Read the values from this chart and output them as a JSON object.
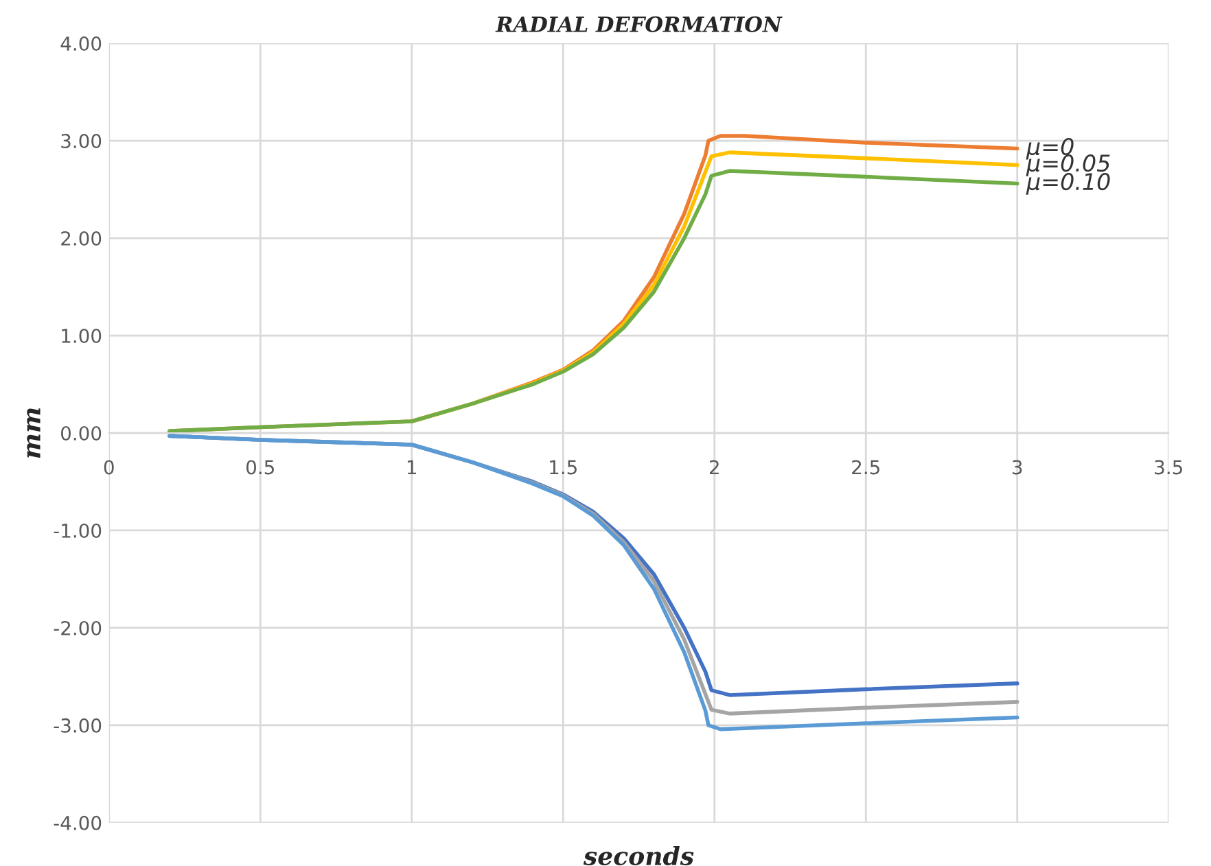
{
  "chart_data": {
    "type": "line",
    "title": "RADIAL DEFORMATION",
    "xlabel": "seconds",
    "ylabel": "mm",
    "xlim": [
      0,
      3.5
    ],
    "xticks": [
      0,
      0.5,
      1,
      1.5,
      2,
      2.5,
      3,
      3.5
    ],
    "ylim": [
      -4,
      4
    ],
    "yticks": [
      {
        "value": -4,
        "label": "-4.00"
      },
      {
        "value": -3,
        "label": "-3.00"
      },
      {
        "value": -2,
        "label": "-2.00"
      },
      {
        "value": -1,
        "label": "-1.00"
      },
      {
        "value": 0,
        "label": "0.00"
      },
      {
        "value": 1,
        "label": "1.00"
      },
      {
        "value": 2,
        "label": "2.00"
      },
      {
        "value": 3,
        "label": "3.00"
      },
      {
        "value": 4,
        "label": "4.00"
      }
    ],
    "grid": true,
    "legend": false,
    "marker": "none",
    "line_style": "solid",
    "series": [
      {
        "name": "μ=0",
        "color": "#ed7d31",
        "x": [
          0.2,
          0.5,
          1.0,
          1.2,
          1.4,
          1.5,
          1.6,
          1.7,
          1.8,
          1.9,
          1.97,
          1.98,
          2.02,
          2.1,
          2.5,
          3.0
        ],
        "values": [
          0.02,
          0.06,
          0.12,
          0.3,
          0.52,
          0.65,
          0.85,
          1.15,
          1.6,
          2.25,
          2.85,
          3.0,
          3.05,
          3.05,
          2.98,
          2.92
        ]
      },
      {
        "name": "μ=0.05",
        "color": "#ffc000",
        "x": [
          1.0,
          1.2,
          1.4,
          1.5,
          1.6,
          1.7,
          1.8,
          1.9,
          1.97,
          1.99,
          2.05,
          2.5,
          3.0
        ],
        "values": [
          0.12,
          0.3,
          0.51,
          0.64,
          0.83,
          1.12,
          1.52,
          2.12,
          2.68,
          2.84,
          2.88,
          2.82,
          2.75
        ]
      },
      {
        "name": "μ=0.10",
        "color": "#70ad47",
        "x": [
          0.2,
          0.5,
          1.0,
          1.2,
          1.4,
          1.5,
          1.6,
          1.7,
          1.8,
          1.9,
          1.97,
          1.99,
          2.05,
          2.5,
          3.0
        ],
        "values": [
          0.02,
          0.06,
          0.12,
          0.3,
          0.5,
          0.63,
          0.81,
          1.08,
          1.45,
          2.0,
          2.45,
          2.64,
          2.69,
          2.63,
          2.56
        ]
      },
      {
        "color": "#4472c4",
        "x": [
          0.2,
          0.5,
          1.0,
          1.2,
          1.4,
          1.5,
          1.6,
          1.7,
          1.8,
          1.9,
          1.97,
          1.99,
          2.05,
          2.5,
          3.0
        ],
        "values": [
          -0.03,
          -0.07,
          -0.12,
          -0.3,
          -0.5,
          -0.63,
          -0.81,
          -1.08,
          -1.45,
          -2.0,
          -2.45,
          -2.64,
          -2.69,
          -2.63,
          -2.57
        ]
      },
      {
        "color": "#a5a5a5",
        "x": [
          0.2,
          0.5,
          1.0,
          1.2,
          1.4,
          1.5,
          1.6,
          1.7,
          1.8,
          1.9,
          1.97,
          1.99,
          2.05,
          2.5,
          3.0
        ],
        "values": [
          -0.03,
          -0.07,
          -0.12,
          -0.3,
          -0.51,
          -0.64,
          -0.83,
          -1.12,
          -1.52,
          -2.12,
          -2.68,
          -2.84,
          -2.88,
          -2.82,
          -2.76
        ]
      },
      {
        "color": "#5b9bd5",
        "x": [
          0.2,
          0.5,
          1.0,
          1.2,
          1.4,
          1.5,
          1.6,
          1.7,
          1.8,
          1.9,
          1.97,
          1.98,
          2.02,
          2.1,
          2.5,
          3.0
        ],
        "values": [
          -0.03,
          -0.07,
          -0.12,
          -0.3,
          -0.52,
          -0.65,
          -0.85,
          -1.15,
          -1.6,
          -2.25,
          -2.85,
          -3.0,
          -3.04,
          -3.03,
          -2.98,
          -2.92
        ]
      }
    ]
  }
}
